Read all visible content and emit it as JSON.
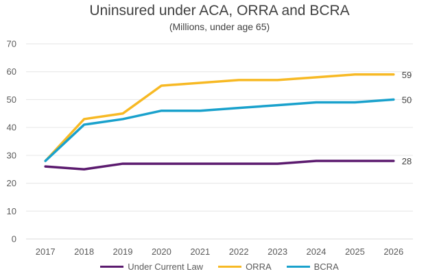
{
  "chart_data": {
    "type": "line",
    "title": "Uninsured under ACA, ORRA and BCRA",
    "subtitle": "(Millions, under age 65)",
    "categories": [
      "2017",
      "2018",
      "2019",
      "2020",
      "2021",
      "2022",
      "2023",
      "2024",
      "2025",
      "2026"
    ],
    "ylim": [
      0,
      70
    ],
    "yticks": [
      0,
      10,
      20,
      30,
      40,
      50,
      60,
      70
    ],
    "grid": true,
    "legend_position": "bottom",
    "series": [
      {
        "name": "Under Current Law",
        "color": "#5b1a6e",
        "values": [
          26,
          25,
          27,
          27,
          27,
          27,
          27,
          28,
          28,
          28
        ],
        "end_label": "28"
      },
      {
        "name": "ORRA",
        "color": "#f7b924",
        "values": [
          28,
          43,
          45,
          55,
          56,
          57,
          57,
          58,
          59,
          59
        ],
        "end_label": "59"
      },
      {
        "name": "BCRA",
        "color": "#19a1cc",
        "values": [
          28,
          41,
          43,
          46,
          46,
          47,
          48,
          49,
          49,
          50
        ],
        "end_label": "50"
      }
    ]
  }
}
